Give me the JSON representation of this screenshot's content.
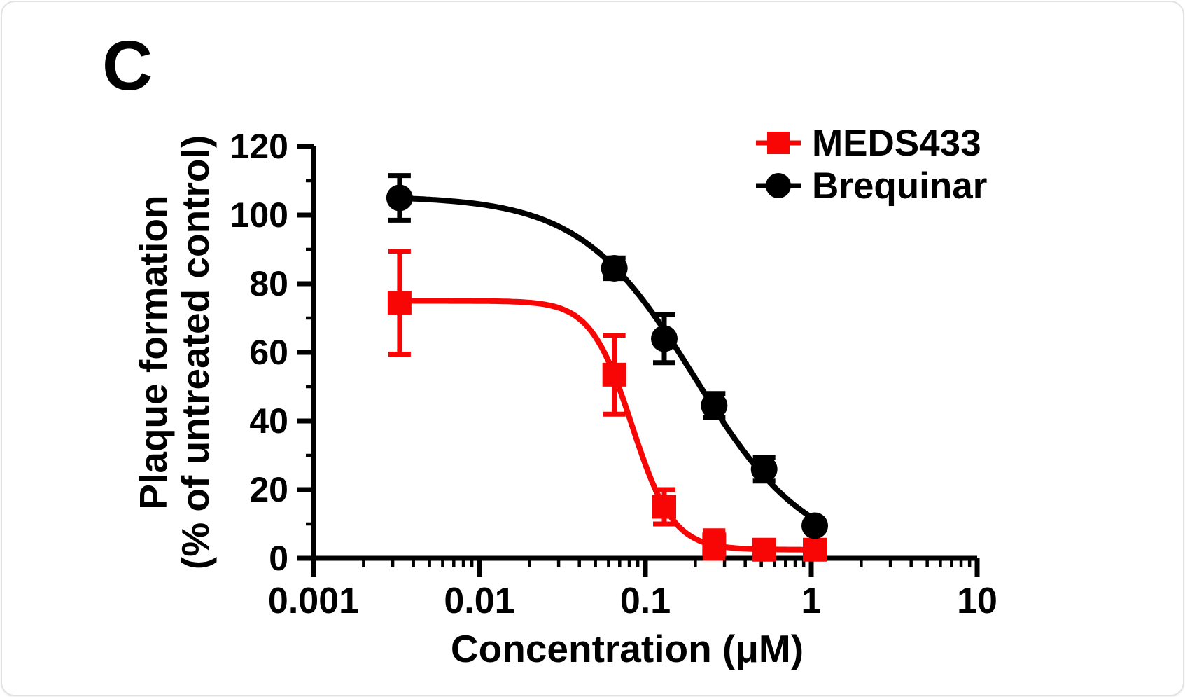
{
  "panel_label": "C",
  "chart_data": {
    "type": "line",
    "x_scale": "log",
    "title": "",
    "xlabel": "Concentration (μM)",
    "ylabel_lines": [
      "Plaque formation",
      "(% of untreated control)"
    ],
    "xlim": [
      0.001,
      10
    ],
    "ylim": [
      0,
      120
    ],
    "x_tick_values": [
      0.001,
      0.01,
      0.1,
      1,
      10
    ],
    "x_tick_labels": [
      "0.001",
      "0.01",
      "0.1",
      "1",
      "10"
    ],
    "y_tick_values": [
      0,
      20,
      40,
      60,
      80,
      100,
      120
    ],
    "y_minor_tick_step": 10,
    "grid": false,
    "legend_position": "top-right",
    "series": [
      {
        "name": "MEDS433",
        "color": "#f80505",
        "marker": "square",
        "x": [
          0.0033,
          0.065,
          0.13,
          0.26,
          0.52,
          1.05
        ],
        "y": [
          74.5,
          53.5,
          15,
          4,
          2.5,
          2.5
        ],
        "y_err": [
          15,
          11.5,
          5,
          4,
          0.5,
          0.5
        ],
        "fit_curve": {
          "model": "4PL",
          "top": 75,
          "bottom": 2.5,
          "ic50": 0.083,
          "hill": 3.5
        }
      },
      {
        "name": "Brequinar",
        "color": "#000000",
        "marker": "circle",
        "x": [
          0.0033,
          0.065,
          0.13,
          0.26,
          0.52,
          1.05
        ],
        "y": [
          105,
          84.5,
          64,
          44.5,
          26,
          9.5
        ],
        "y_err": [
          6.5,
          3,
          7,
          3.5,
          3.5,
          1.5
        ],
        "fit_curve": {
          "model": "4PL",
          "top": 105.5,
          "bottom": 0,
          "ic50": 0.198,
          "hill": 1.27
        }
      }
    ]
  }
}
